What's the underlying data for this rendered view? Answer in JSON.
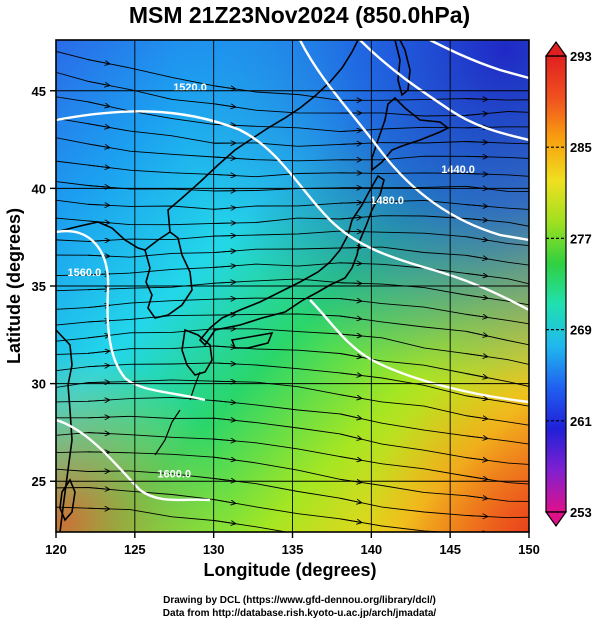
{
  "title": "MSM 21Z23Nov2024 (850.0hPa)",
  "x_axis": {
    "label": "Longitude (degrees)",
    "range": [
      120,
      150
    ],
    "ticks": [
      "120",
      "125",
      "130",
      "135",
      "140",
      "145",
      "150"
    ]
  },
  "y_axis": {
    "label": "Latitude  (degrees)",
    "range": [
      22.4,
      47.6
    ],
    "ticks": [
      "25",
      "30",
      "35",
      "40",
      "45"
    ]
  },
  "colorbar": {
    "min": 253,
    "max": 293,
    "labels": [
      "293",
      "285",
      "277",
      "269",
      "261",
      "253"
    ],
    "colors": [
      "#e0108a",
      "#8020d0",
      "#2020d8",
      "#2060f0",
      "#20b8ee",
      "#20e0b0",
      "#30d040",
      "#a0e020",
      "#f0e020",
      "#f8a010",
      "#f05020",
      "#e02020"
    ]
  },
  "contours": [
    {
      "label": "1520.0",
      "lon": 128.5,
      "lat": 45.0
    },
    {
      "label": "1560.0",
      "lon": 121.8,
      "lat": 35.5
    },
    {
      "label": "1440.0",
      "lon": 145.5,
      "lat": 40.8
    },
    {
      "label": "1480.0",
      "lon": 141.0,
      "lat": 39.2
    },
    {
      "label": "1600.0",
      "lon": 127.5,
      "lat": 25.2
    }
  ],
  "credits": {
    "line1": "Drawing by DCL (https://www.gfd-dennou.org/library/dcl/)",
    "line2": "Data from http://database.rish.kyoto-u.ac.jp/arch/jmadata/"
  }
}
